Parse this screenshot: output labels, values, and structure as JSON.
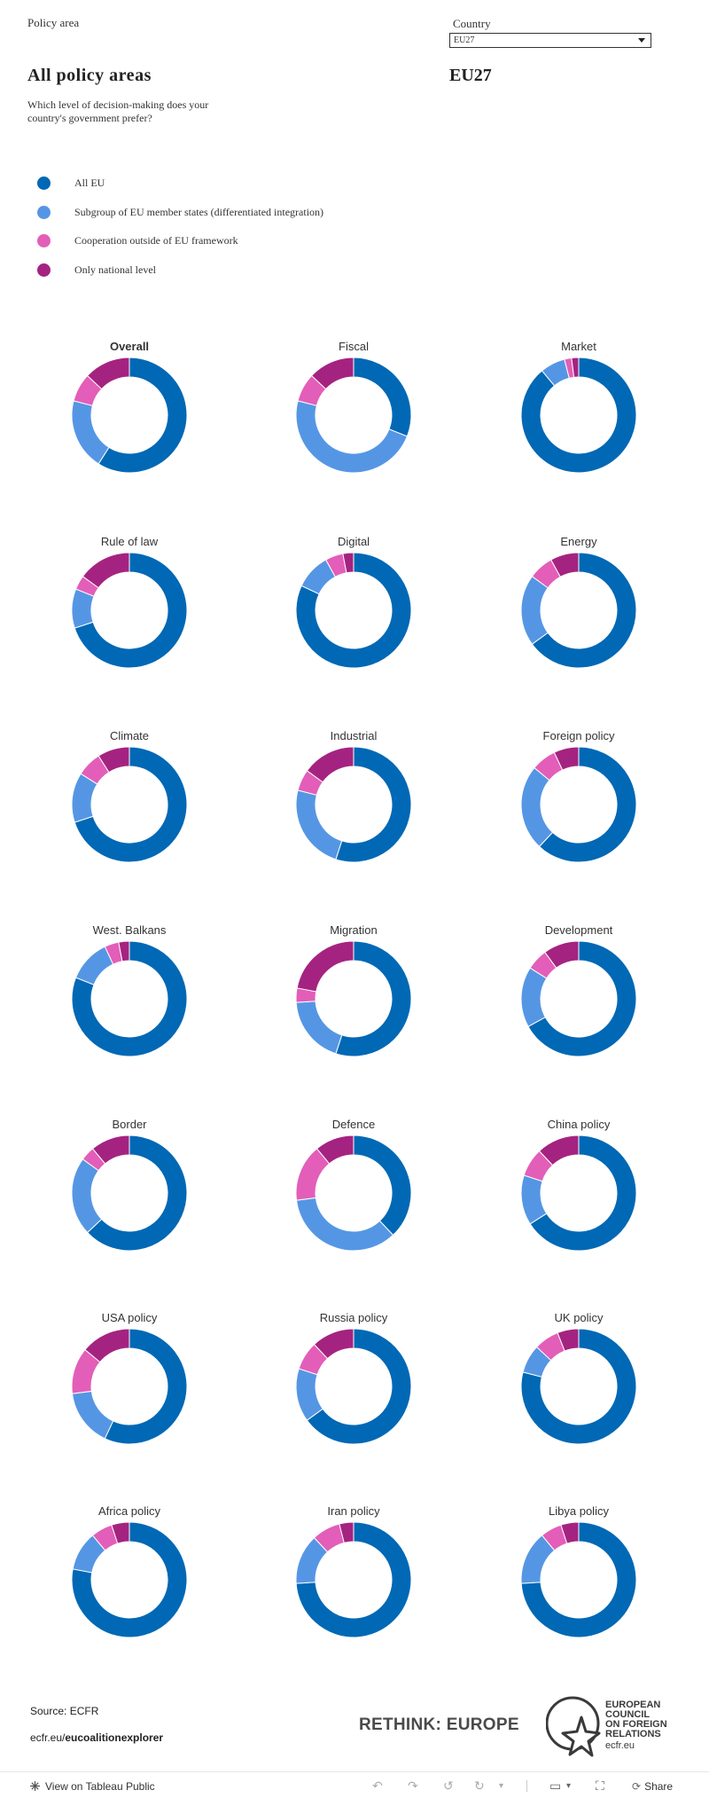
{
  "filters": {
    "policy_area_label": "Policy area",
    "country_label": "Country",
    "country_selected": "EU27"
  },
  "header": {
    "title": "All  policy  areas",
    "country": "EU27",
    "question": "Which level of decision-making does your country's government prefer?"
  },
  "legend": [
    {
      "label": "All EU",
      "color": "#0068b5"
    },
    {
      "label": "Subgroup of EU member states (differentiated integration)",
      "color": "#5596e4"
    },
    {
      "label": "Cooperation outside of EU framework",
      "color": "#e35eb8"
    },
    {
      "label": "Only national level",
      "color": "#a52380"
    }
  ],
  "chart_data": {
    "type": "pie",
    "variant": "donut",
    "unit": "share of responses (estimated %)",
    "series": [
      "All EU",
      "Subgroup of EU member states (differentiated integration)",
      "Cooperation outside of EU framework",
      "Only national level"
    ],
    "charts": [
      {
        "title": "Overall",
        "bold": true,
        "values": [
          59,
          20,
          8,
          13
        ]
      },
      {
        "title": "Fiscal",
        "values": [
          31,
          48,
          8,
          13
        ]
      },
      {
        "title": "Market",
        "values": [
          89,
          7,
          2,
          2
        ]
      },
      {
        "title": "Rule of law",
        "values": [
          70,
          11,
          4,
          15
        ]
      },
      {
        "title": "Digital",
        "values": [
          82,
          10,
          5,
          3
        ]
      },
      {
        "title": "Energy",
        "values": [
          65,
          20,
          7,
          8
        ]
      },
      {
        "title": "Climate",
        "values": [
          70,
          14,
          7,
          9
        ]
      },
      {
        "title": "Industrial",
        "values": [
          55,
          24,
          6,
          15
        ]
      },
      {
        "title": "Foreign policy",
        "values": [
          62,
          24,
          7,
          7
        ]
      },
      {
        "title": "West. Balkans",
        "values": [
          81,
          12,
          4,
          3
        ]
      },
      {
        "title": "Migration",
        "values": [
          55,
          19,
          4,
          22
        ]
      },
      {
        "title": "Development",
        "values": [
          67,
          17,
          6,
          10
        ]
      },
      {
        "title": "Border",
        "values": [
          63,
          22,
          4,
          11
        ]
      },
      {
        "title": "Defence",
        "values": [
          38,
          35,
          16,
          11
        ]
      },
      {
        "title": "China policy",
        "values": [
          66,
          14,
          8,
          12
        ]
      },
      {
        "title": "USA policy",
        "values": [
          57,
          16,
          13,
          14
        ]
      },
      {
        "title": "Russia policy",
        "values": [
          65,
          15,
          8,
          12
        ]
      },
      {
        "title": "UK policy",
        "values": [
          79,
          8,
          7,
          6
        ]
      },
      {
        "title": "Africa policy",
        "values": [
          78,
          11,
          6,
          5
        ]
      },
      {
        "title": "Iran policy",
        "values": [
          74,
          14,
          8,
          4
        ]
      },
      {
        "title": "Libya policy",
        "values": [
          74,
          15,
          6,
          5
        ]
      }
    ]
  },
  "footer": {
    "source": "Source: ECFR",
    "link_prefix": "ecfr.eu/",
    "link_bold": "eucoalitionexplorer",
    "rethink": "RETHINK: EUROPE",
    "ecfr_lines": [
      "EUROPEAN",
      "COUNCIL",
      "ON FOREIGN",
      "RELATIONS"
    ],
    "ecfr_url": "ecfr.eu"
  },
  "toolbar": {
    "view_label": "View on Tableau Public",
    "share_label": "Share"
  }
}
